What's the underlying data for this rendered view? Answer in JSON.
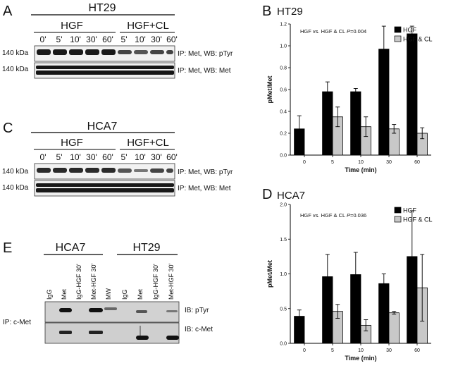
{
  "panelA": {
    "letter": "A",
    "cell_line": "HT29",
    "groups": [
      "HGF",
      "HGF+CL"
    ],
    "lanes": [
      "0'",
      "5'",
      "10'",
      "30'",
      "60'",
      "5'",
      "10'",
      "30'",
      "60'"
    ],
    "mw": [
      "140 kDa",
      "140 kDa"
    ],
    "blots": [
      "IP: Met, WB: pTyr",
      "IP: Met, WB: Met"
    ]
  },
  "panelC": {
    "letter": "C",
    "cell_line": "HCA7",
    "groups": [
      "HGF",
      "HGF+CL"
    ],
    "lanes": [
      "0'",
      "5'",
      "10'",
      "30'",
      "60'",
      "5'",
      "10'",
      "30'",
      "60'"
    ],
    "mw": [
      "140 kDa",
      "140 kDa"
    ],
    "blots": [
      "IP: Met, WB: pTyr",
      "IP: Met, WB: Met"
    ]
  },
  "panelE": {
    "letter": "E",
    "cell_lines": [
      "HCA7",
      "HT29"
    ],
    "lanes": [
      "IgG",
      "Met",
      "IgG-HGF 30'",
      "Met-HGF 30'",
      "MW",
      "IgG",
      "Met",
      "IgG-HGF 30'",
      "Met-HGF 30'"
    ],
    "ip": "IP: c-Met",
    "blots": [
      "IB: pTyr",
      "IB: c-Met"
    ]
  },
  "chart_data": [
    {
      "letter": "B",
      "type": "bar",
      "title": "HT29",
      "annotation": "HGF vs. HGF & CL",
      "p_label": "P",
      "p_value": "=0.004",
      "xlabel": "Time (min)",
      "ylabel": "pMet/Met",
      "categories": [
        "0",
        "5",
        "10",
        "30",
        "60"
      ],
      "ylim": [
        0,
        1.2
      ],
      "yticks": [
        "0.0",
        "0.2",
        "0.4",
        "0.6",
        "0.8",
        "1.0",
        "1.2"
      ],
      "legend_position": "top-right",
      "series": [
        {
          "name": "HGF",
          "color": "#000000",
          "values": [
            0.24,
            0.58,
            0.58,
            0.97,
            1.11
          ],
          "errors": [
            0.12,
            0.09,
            0.03,
            0.21,
            0.07
          ]
        },
        {
          "name": "HGF & CL",
          "color": "#c8c8c8",
          "values": [
            null,
            0.35,
            0.26,
            0.24,
            0.2
          ],
          "errors": [
            null,
            0.09,
            0.09,
            0.04,
            0.05
          ]
        }
      ]
    },
    {
      "letter": "D",
      "type": "bar",
      "title": "HCA7",
      "annotation": "HGF vs. HGF & CL",
      "p_label": "P",
      "p_value": "=0.036",
      "xlabel": "Time (min)",
      "ylabel": "pMet/Met",
      "categories": [
        "0",
        "5",
        "10",
        "30",
        "60"
      ],
      "ylim": [
        0,
        2.0
      ],
      "yticks": [
        "0.0",
        "0.5",
        "1.0",
        "1.5",
        "2.0"
      ],
      "legend_position": "top-right",
      "series": [
        {
          "name": "HGF",
          "color": "#000000",
          "values": [
            0.39,
            0.96,
            0.99,
            0.86,
            1.25
          ],
          "errors": [
            0.09,
            0.32,
            0.32,
            0.14,
            0.66
          ]
        },
        {
          "name": "HGF & CL",
          "color": "#c8c8c8",
          "values": [
            null,
            0.46,
            0.26,
            0.44,
            0.8
          ],
          "errors": [
            null,
            0.1,
            0.08,
            0.02,
            0.48
          ]
        }
      ]
    }
  ]
}
